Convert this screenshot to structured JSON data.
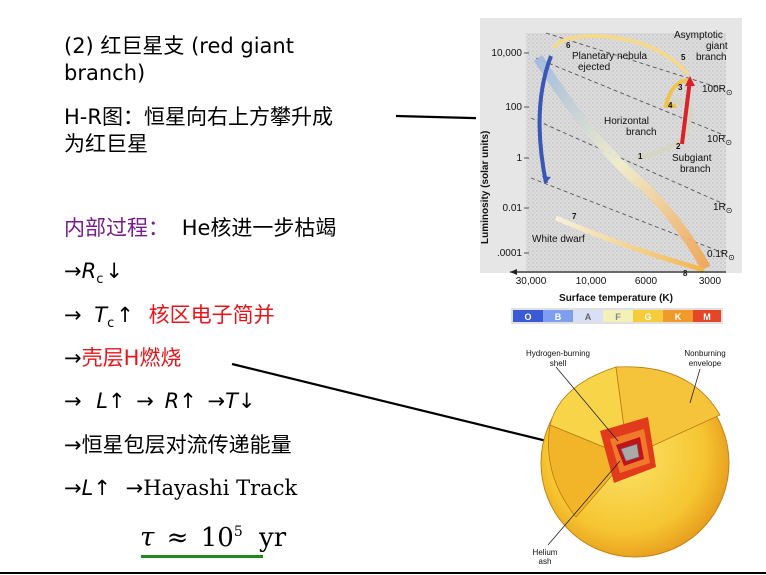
{
  "heading": {
    "line1": "(2) 红巨星支 (red giant",
    "line2": "branch)"
  },
  "hr_note": {
    "line1": "H-R图：恒星向右上方攀升成",
    "line2": "为红巨星"
  },
  "internal": {
    "label": "内部过程：",
    "text": "He核进一步枯竭"
  },
  "steps": {
    "rc": {
      "arrow": "→",
      "sym": "R",
      "sub": "c",
      "dir": "↓"
    },
    "tc": {
      "arrow": "→",
      "sym": "T",
      "sub": "c",
      "dir": "↑",
      "note": "核区电子简并"
    },
    "shell": {
      "arrow": "→",
      "text": "壳层H燃烧"
    },
    "lrt": {
      "a1": "→",
      "l": "L",
      "d1": "↑",
      "a2": "→",
      "r": "R",
      "d2": "↑",
      "a3": "→",
      "t": "T",
      "d3": "↓"
    },
    "convect": {
      "arrow": "→",
      "text": "恒星包层对流传递能量"
    },
    "hayashi": {
      "arrow": "→",
      "l": "L",
      "d": "↑",
      "arrow2": "→",
      "text": "Hayashi Track"
    },
    "tau": {
      "sym": "τ",
      "approx": "≈",
      "base": "10",
      "exp": "5",
      "unit": "yr"
    }
  },
  "hr_diagram": {
    "ylabel": "Luminosity (solar units)",
    "xlabel": "Surface temperature (K)",
    "yticks": [
      "10,000",
      "100",
      "1",
      "0.01",
      ".0001"
    ],
    "xticks": [
      "30,000",
      "10,000",
      "6000",
      "3000"
    ],
    "radius_labels": [
      "100R",
      "10R",
      "1R",
      "0.1R"
    ],
    "sun_sym": "⊙",
    "region_labels": {
      "asymptotic": [
        "Asymptotic",
        "giant",
        "branch"
      ],
      "planetary": [
        "Planetary nebula",
        "ejected"
      ],
      "horizontal": [
        "Horizontal",
        "branch"
      ],
      "subgiant": [
        "Subgiant",
        "branch"
      ],
      "white_dwarf": "White dwarf"
    },
    "stage_numbers": [
      "1",
      "2",
      "3",
      "4",
      "5",
      "6",
      "7",
      "8"
    ],
    "spectral": [
      "O",
      "B",
      "A",
      "F",
      "G",
      "K",
      "M"
    ],
    "spectral_colors": [
      "#3b5bd6",
      "#7e9ff0",
      "#d8dff7",
      "#f3f0b8",
      "#f6cc3a",
      "#f19a2c",
      "#e5462a"
    ]
  },
  "star_diagram": {
    "labels": {
      "hshell": [
        "Hydrogen-burning",
        "shell"
      ],
      "envelope": [
        "Nonburning",
        "envelope"
      ],
      "helium": [
        "Helium",
        "ash"
      ]
    }
  }
}
